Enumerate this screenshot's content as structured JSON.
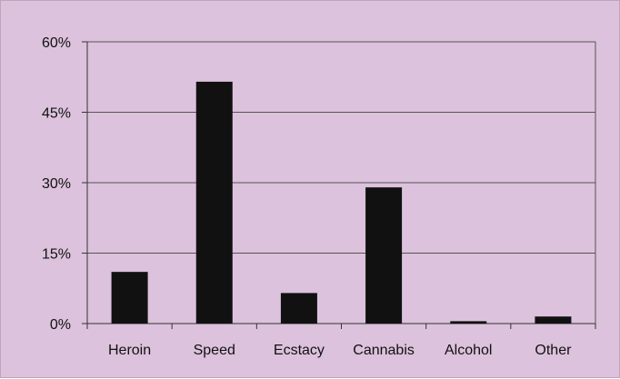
{
  "colors": {
    "background": "#dcc2dc",
    "bar": "#111111",
    "gridline": "#555555",
    "axis": "#333333"
  },
  "chart_data": {
    "type": "bar",
    "title": "",
    "xlabel": "",
    "ylabel": "",
    "categories": [
      "Heroin",
      "Speed",
      "Ecstacy",
      "Cannabis",
      "Alcohol",
      "Other"
    ],
    "values": [
      11,
      51.5,
      6.5,
      29,
      0.5,
      1.5
    ],
    "ylim": [
      0,
      60
    ],
    "yticks": [
      0,
      15,
      30,
      45,
      60
    ],
    "ytick_labels": [
      "0%",
      "15%",
      "30%",
      "45%",
      "60%"
    ],
    "grid": true,
    "legend": "none"
  }
}
